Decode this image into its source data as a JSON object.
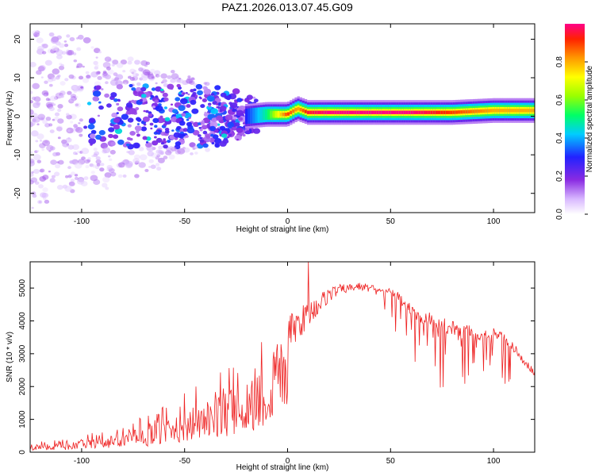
{
  "title": "PAZ1.2026.013.07.45.G09",
  "chart_data": [
    {
      "type": "heatmap",
      "xlabel": "Height of straight line (km)",
      "ylabel": "Frequency (Hz)",
      "xlim": [
        -125,
        120
      ],
      "ylim": [
        -25,
        24
      ],
      "xticks": [
        -100,
        -50,
        0,
        50,
        100
      ],
      "yticks": [
        -20,
        -10,
        0,
        10,
        20
      ],
      "colorbar": {
        "label": "Normalized spectral amplitude",
        "range": [
          0,
          1
        ],
        "ticks": [
          "0.0",
          "0.2",
          "0.4",
          "0.6",
          "0.8"
        ]
      },
      "ridge": {
        "x": [
          -20,
          -10,
          0,
          5,
          10,
          20,
          40,
          60,
          80,
          100,
          120
        ],
        "frequency": [
          0,
          0.5,
          0.5,
          2,
          1,
          1,
          1,
          1,
          1,
          1.5,
          1.5
        ],
        "amplitude": [
          0.3,
          0.5,
          0.9,
          0.8,
          0.95,
          1.0,
          1.0,
          1.0,
          0.9,
          0.8,
          0.8
        ]
      }
    },
    {
      "type": "line",
      "xlabel": "Height of straight line (km)",
      "ylabel": "SNR (10 * v/v)",
      "xlim": [
        -125,
        120
      ],
      "ylim": [
        0,
        5800
      ],
      "xticks": [
        -100,
        -50,
        0,
        50,
        100
      ],
      "yticks": [
        0,
        1000,
        2000,
        3000,
        4000,
        5000
      ],
      "series": [
        {
          "name": "SNR",
          "color": "#ee2222",
          "x": [
            -125,
            -110,
            -100,
            -90,
            -80,
            -70,
            -60,
            -50,
            -40,
            -30,
            -20,
            -15,
            -10,
            -5,
            0,
            5,
            10,
            15,
            20,
            25,
            30,
            35,
            40,
            45,
            50,
            55,
            60,
            65,
            70,
            75,
            80,
            85,
            90,
            95,
            100,
            105,
            110,
            115,
            120
          ],
          "values": [
            150,
            200,
            250,
            300,
            400,
            500,
            650,
            800,
            1000,
            1300,
            1600,
            1800,
            2000,
            3300,
            3600,
            3900,
            4200,
            4500,
            4800,
            4950,
            5000,
            5050,
            5000,
            4950,
            4900,
            4700,
            4400,
            4200,
            4100,
            3900,
            3800,
            3700,
            3700,
            3600,
            3700,
            3500,
            3200,
            2800,
            2400
          ],
          "spread": [
            100,
            150,
            200,
            250,
            350,
            450,
            600,
            750,
            900,
            1000,
            1100,
            1300,
            900,
            800,
            700,
            600,
            500,
            400,
            300,
            200,
            150,
            150,
            150,
            250,
            600,
            1100,
            1200,
            1400,
            1500,
            1400,
            1300,
            1200,
            1100,
            1100,
            1000,
            1000,
            900,
            700,
            500
          ]
        }
      ],
      "peak": {
        "x": 10,
        "value": 5800
      }
    }
  ]
}
